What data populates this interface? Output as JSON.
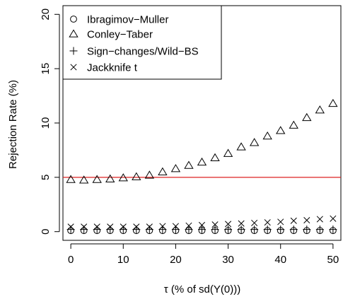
{
  "chart_data": {
    "type": "scatter",
    "xlabel": "τ (% of sd(Y(0)))",
    "ylabel": "Rejection Rate (%)",
    "xlim": [
      -1.5,
      51.5
    ],
    "ylim": [
      -0.8,
      20.8
    ],
    "x_ticks": [
      0,
      10,
      20,
      30,
      40,
      50
    ],
    "x_tick_labels": [
      "0",
      "10",
      "20",
      "30",
      "40",
      "50"
    ],
    "y_ticks": [
      0,
      5,
      10,
      15,
      20
    ],
    "y_tick_labels": [
      "0",
      "5",
      "10",
      "15",
      "20"
    ],
    "legend_position": "top-left",
    "reference_line": {
      "y": 5,
      "color": "#dd2222"
    },
    "x": [
      0,
      2.5,
      5,
      7.5,
      10,
      12.5,
      15,
      17.5,
      20,
      22.5,
      25,
      27.5,
      30,
      32.5,
      35,
      37.5,
      40,
      42.5,
      45,
      47.5,
      50
    ],
    "series": [
      {
        "name": "Ibragimov−Muller",
        "marker": "circle",
        "values": [
          0.1,
          0.1,
          0.1,
          0.1,
          0.1,
          0.1,
          0.1,
          0.1,
          0.1,
          0.1,
          0.1,
          0.1,
          0.1,
          0.1,
          0.1,
          0.1,
          0.1,
          0.1,
          0.1,
          0.1,
          0.1
        ]
      },
      {
        "name": "Conley−Taber",
        "marker": "triangle",
        "values": [
          4.8,
          4.75,
          4.8,
          4.85,
          4.95,
          5.05,
          5.2,
          5.5,
          5.8,
          6.1,
          6.4,
          6.8,
          7.2,
          7.8,
          8.2,
          8.8,
          9.3,
          9.8,
          10.5,
          11.2,
          11.8
        ]
      },
      {
        "name": "Sign−changes/Wild−BS",
        "marker": "plus",
        "values": [
          0.2,
          0.2,
          0.2,
          0.2,
          0.2,
          0.2,
          0.2,
          0.2,
          0.2,
          0.2,
          0.2,
          0.2,
          0.2,
          0.2,
          0.2,
          0.2,
          0.2,
          0.2,
          0.2,
          0.2,
          0.2
        ]
      },
      {
        "name": "Jackknife t",
        "marker": "cross",
        "values": [
          0.45,
          0.45,
          0.45,
          0.45,
          0.45,
          0.45,
          0.45,
          0.5,
          0.5,
          0.55,
          0.6,
          0.65,
          0.7,
          0.75,
          0.8,
          0.85,
          0.9,
          1.0,
          1.05,
          1.15,
          1.2
        ]
      }
    ]
  }
}
